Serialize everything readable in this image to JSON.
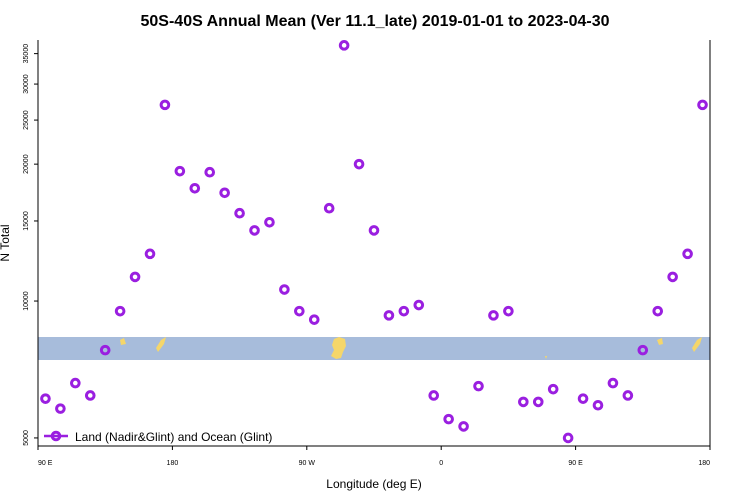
{
  "chart_data": {
    "type": "scatter",
    "title": "50S-40S Annual Mean (Ver 11.1_late)   2019-01-01 to 2023-04-30",
    "xlabel": "Longitude (deg E)",
    "ylabel": "N Total",
    "x_ticks": [
      {
        "value": 90,
        "label": "90 E"
      },
      {
        "value": 180,
        "label": "180"
      },
      {
        "value": 270,
        "label": "90 W"
      },
      {
        "value": 360,
        "label": "0"
      },
      {
        "value": 450,
        "label": "90 E"
      },
      {
        "value": 540,
        "label": "180"
      }
    ],
    "xlim": [
      90,
      540
    ],
    "y_ticks": [
      5000,
      10000,
      15000,
      20000,
      25000,
      30000,
      35000
    ],
    "ylim": [
      4800,
      37500
    ],
    "y_scale": "log",
    "grid": false,
    "legend_position": "bottom-left",
    "series": [
      {
        "name": "Land (Nadir&Glint) and Ocean (Glint)",
        "color": "#9a1fe0",
        "marker": "open-circle",
        "x": [
          95,
          105,
          115,
          125,
          135,
          145,
          155,
          165,
          175,
          185,
          195,
          205,
          215,
          225,
          235,
          245,
          255,
          265,
          275,
          285,
          295,
          305,
          315,
          325,
          335,
          345,
          355,
          365,
          375,
          385,
          395,
          405,
          415,
          425,
          435,
          445,
          455,
          465,
          475,
          485,
          495,
          505,
          515,
          525,
          535
        ],
        "y": [
          6100,
          5800,
          6600,
          6200,
          7800,
          9500,
          11300,
          12700,
          27000,
          19300,
          17700,
          19200,
          17300,
          15600,
          14300,
          14900,
          10600,
          9500,
          9100,
          16000,
          36500,
          20000,
          14300,
          9300,
          9500,
          9800,
          6200,
          5500,
          5300,
          6500,
          9300,
          9500,
          6000,
          6000,
          6400,
          5000,
          6100,
          5900,
          6600,
          6200,
          7800,
          9500,
          11300,
          12700,
          27000
        ]
      }
    ]
  },
  "map_band": {
    "ocean_color": "#a7bcdb",
    "land_color": "#f5d66a"
  }
}
